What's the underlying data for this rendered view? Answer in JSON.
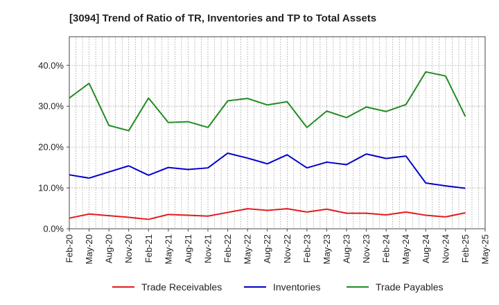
{
  "chart_data": {
    "type": "line",
    "title": "[3094]  Trend of Ratio of TR, Inventories and TP to Total Assets",
    "xlabel": "",
    "ylabel": "",
    "x_tick_labels": [
      "Feb-20",
      "May-20",
      "Aug-20",
      "Nov-20",
      "Feb-21",
      "May-21",
      "Aug-21",
      "Nov-21",
      "Feb-22",
      "May-22",
      "Aug-22",
      "Nov-22",
      "Feb-23",
      "May-23",
      "Aug-23",
      "Nov-23",
      "Feb-24",
      "May-24",
      "Aug-24",
      "Nov-24",
      "Feb-25",
      "May-25"
    ],
    "categories": [
      "Feb-20",
      "May-20",
      "Aug-20",
      "Nov-20",
      "Feb-21",
      "May-21",
      "Aug-21",
      "Nov-21",
      "Feb-22",
      "May-22",
      "Aug-22",
      "Nov-22",
      "Feb-23",
      "May-23",
      "Aug-23",
      "Nov-23",
      "Feb-24",
      "May-24",
      "Aug-24",
      "Nov-24",
      "Feb-25"
    ],
    "y_ticks": [
      0,
      10,
      20,
      30,
      40
    ],
    "y_tick_labels": [
      "0.0%",
      "10.0%",
      "20.0%",
      "30.0%",
      "40.0%"
    ],
    "ylim": [
      0,
      47
    ],
    "grid": true,
    "legend_position": "bottom",
    "series": [
      {
        "name": "Trade Receivables",
        "color": "#e31a1c",
        "values": [
          2.6,
          3.6,
          3.2,
          2.8,
          2.3,
          3.5,
          3.3,
          3.1,
          4.0,
          4.9,
          4.5,
          4.9,
          4.1,
          4.8,
          3.8,
          3.8,
          3.4,
          4.1,
          3.3,
          2.9,
          3.9
        ]
      },
      {
        "name": "Inventories",
        "color": "#0000cc",
        "values": [
          13.2,
          12.4,
          13.9,
          15.4,
          13.1,
          15.0,
          14.5,
          14.9,
          18.5,
          17.3,
          15.9,
          18.1,
          14.9,
          16.3,
          15.7,
          18.3,
          17.2,
          17.8,
          11.2,
          10.5,
          9.9
        ]
      },
      {
        "name": "Trade Payables",
        "color": "#228b22",
        "values": [
          32.0,
          35.6,
          25.3,
          24.0,
          32.0,
          26.0,
          26.2,
          24.8,
          31.3,
          31.9,
          30.3,
          31.1,
          24.8,
          28.8,
          27.2,
          29.8,
          28.7,
          30.4,
          38.4,
          37.4,
          27.5
        ]
      }
    ]
  }
}
